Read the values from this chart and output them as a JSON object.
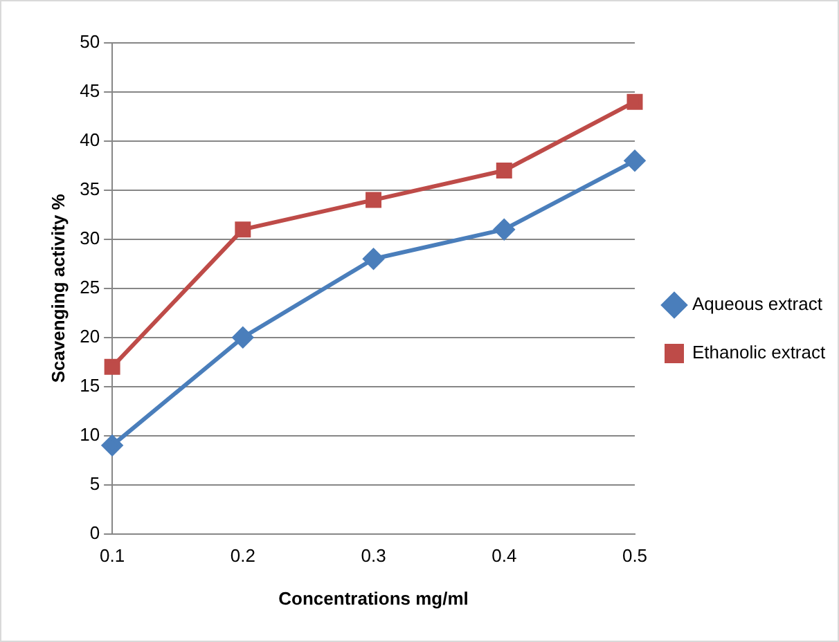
{
  "chart_data": {
    "type": "line",
    "xlabel": "Concentrations mg/ml",
    "ylabel": "Scavenging activity %",
    "categories": [
      "0.1",
      "0.2",
      "0.3",
      "0.4",
      "0.5"
    ],
    "series": [
      {
        "name": "Aqueous extract",
        "color": "#4a7ebb",
        "marker": "diamond",
        "values": [
          9,
          20,
          28,
          31,
          38
        ]
      },
      {
        "name": "Ethanolic extract",
        "color": "#be4b48",
        "marker": "square",
        "values": [
          17,
          31,
          34,
          37,
          44
        ]
      }
    ],
    "ylim": [
      0,
      50
    ],
    "yticks": [
      0,
      5,
      10,
      15,
      20,
      25,
      30,
      35,
      40,
      45,
      50
    ],
    "grid": "y",
    "legend": "right",
    "line_style": "solid"
  }
}
